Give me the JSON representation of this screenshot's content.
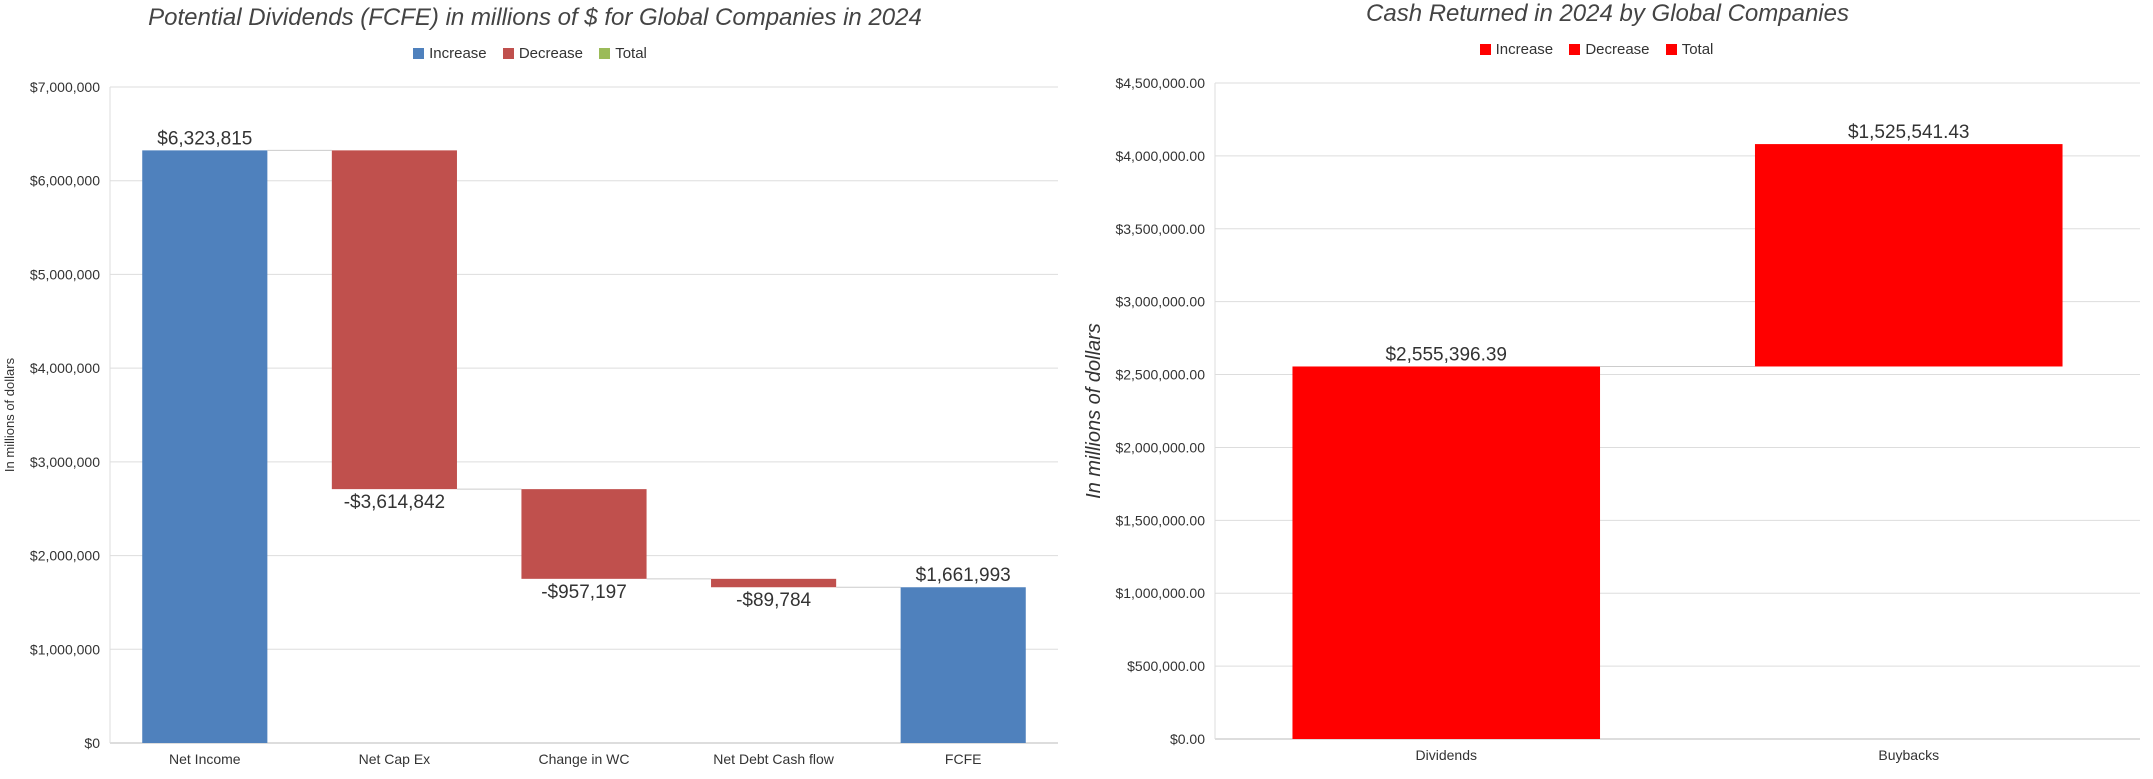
{
  "chart_data": [
    {
      "type": "waterfall",
      "title": "Potential Dividends (FCFE) in millions of $ for Global Companies in 2024",
      "legend": [
        {
          "label": "Increase",
          "color": "#4f81bd"
        },
        {
          "label": "Decrease",
          "color": "#c0504d"
        },
        {
          "label": "Total",
          "color": "#9bbb59"
        }
      ],
      "legend_position": "top",
      "ylabel": "In millions of dollars",
      "xlabel": "",
      "ylim": [
        0,
        7000000
      ],
      "yticks": [
        "$0",
        "$1,000,000",
        "$2,000,000",
        "$3,000,000",
        "$4,000,000",
        "$5,000,000",
        "$6,000,000",
        "$7,000,000"
      ],
      "grid": true,
      "categories": [
        "Net Income",
        "Net Cap Ex",
        "Change in WC",
        "Net Debt Cash flow",
        "FCFE"
      ],
      "values": [
        6323815,
        -3614842,
        -957197,
        -89784,
        1661993
      ],
      "value_labels": [
        "$6,323,815",
        "-$3,614,842",
        "-$957,197",
        "-$89,784",
        "$1,661,993"
      ],
      "bar_kinds": [
        "increase",
        "decrease",
        "decrease",
        "decrease",
        "increase"
      ]
    },
    {
      "type": "waterfall",
      "title": "Cash Returned in 2024 by Global Companies",
      "legend": [
        {
          "label": "Increase",
          "color": "#ff0000"
        },
        {
          "label": "Decrease",
          "color": "#ff0000"
        },
        {
          "label": "Total",
          "color": "#ff0000"
        }
      ],
      "legend_position": "top",
      "ylabel": "In millions of dollars",
      "xlabel": "",
      "ylim": [
        0,
        4500000
      ],
      "yticks": [
        "$0.00",
        "$500,000.00",
        "$1,000,000.00",
        "$1,500,000.00",
        "$2,000,000.00",
        "$2,500,000.00",
        "$3,000,000.00",
        "$3,500,000.00",
        "$4,000,000.00",
        "$4,500,000.00"
      ],
      "grid": true,
      "categories": [
        "Dividends",
        "Buybacks"
      ],
      "values": [
        2555396.39,
        1525541.43
      ],
      "value_labels": [
        "$2,555,396.39",
        "$1,525,541.43"
      ],
      "bar_kinds": [
        "increase",
        "increase"
      ]
    }
  ]
}
